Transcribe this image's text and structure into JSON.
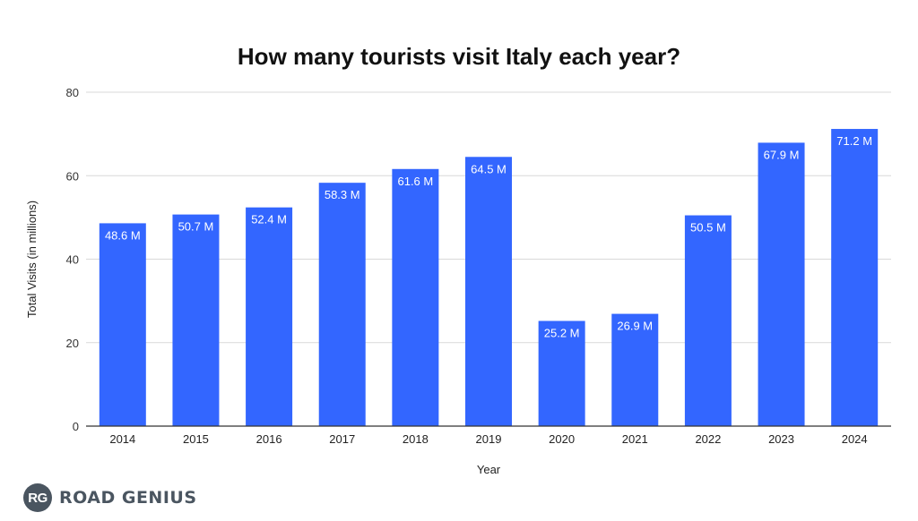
{
  "chart_data": {
    "type": "bar",
    "title": "How many tourists visit Italy each year?",
    "xlabel": "Year",
    "ylabel": "Total Visits (in millions)",
    "categories": [
      "2014",
      "2015",
      "2016",
      "2017",
      "2018",
      "2019",
      "2020",
      "2021",
      "2022",
      "2023",
      "2024"
    ],
    "values": [
      48.6,
      50.7,
      52.4,
      58.3,
      61.6,
      64.5,
      25.2,
      26.9,
      50.5,
      67.9,
      71.2
    ],
    "data_labels": [
      "48.6 M",
      "50.7 M",
      "52.4 M",
      "58.3 M",
      "61.6 M",
      "64.5 M",
      "25.2 M",
      "26.9 M",
      "50.5 M",
      "67.9 M",
      "71.2 M"
    ],
    "ylim": [
      0,
      80
    ],
    "yticks": [
      0,
      20,
      40,
      60,
      80
    ],
    "grid": true,
    "legend": "none",
    "bar_color": "#3366ff"
  },
  "branding": {
    "logo_mark": "RG",
    "logo_text": "ROAD GENIUS"
  }
}
